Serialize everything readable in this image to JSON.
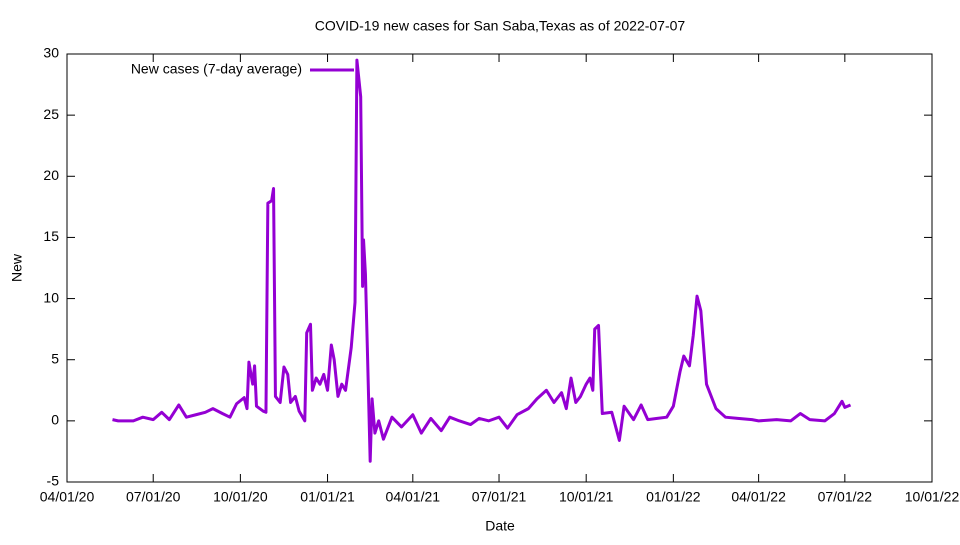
{
  "chart_data": {
    "type": "line",
    "title": "COVID-19 new cases for San Saba,Texas as of 2022-07-07",
    "x_label": "Date",
    "y_label": "New",
    "legend_position": "top-left",
    "xlim": [
      "2020-04-01",
      "2022-10-01"
    ],
    "xticks": [
      {
        "value": "2020-04-01",
        "label": "04/01/20"
      },
      {
        "value": "2020-07-01",
        "label": "07/01/20"
      },
      {
        "value": "2020-10-01",
        "label": "10/01/20"
      },
      {
        "value": "2021-01-01",
        "label": "01/01/21"
      },
      {
        "value": "2021-04-01",
        "label": "04/01/21"
      },
      {
        "value": "2021-07-01",
        "label": "07/01/21"
      },
      {
        "value": "2021-10-01",
        "label": "10/01/21"
      },
      {
        "value": "2022-01-01",
        "label": "01/01/22"
      },
      {
        "value": "2022-04-01",
        "label": "04/01/22"
      },
      {
        "value": "2022-07-01",
        "label": "07/01/22"
      },
      {
        "value": "2022-10-01",
        "label": "10/01/22"
      }
    ],
    "ylim": [
      -5,
      30
    ],
    "yticks": [
      -5,
      0,
      5,
      10,
      15,
      20,
      25,
      30
    ],
    "x": [
      "2020-05-19",
      "2020-05-25",
      "2020-06-10",
      "2020-06-20",
      "2020-07-01",
      "2020-07-10",
      "2020-07-18",
      "2020-07-28",
      "2020-08-05",
      "2020-08-15",
      "2020-08-25",
      "2020-09-02",
      "2020-09-12",
      "2020-09-20",
      "2020-09-27",
      "2020-10-05",
      "2020-10-08",
      "2020-10-10",
      "2020-10-14",
      "2020-10-16",
      "2020-10-18",
      "2020-10-25",
      "2020-10-28",
      "2020-10-30",
      "2020-11-03",
      "2020-11-05",
      "2020-11-07",
      "2020-11-12",
      "2020-11-16",
      "2020-11-20",
      "2020-11-23",
      "2020-11-28",
      "2020-12-02",
      "2020-12-08",
      "2020-12-10",
      "2020-12-14",
      "2020-12-16",
      "2020-12-20",
      "2020-12-24",
      "2020-12-28",
      "2021-01-01",
      "2021-01-05",
      "2021-01-08",
      "2021-01-12",
      "2021-01-16",
      "2021-01-20",
      "2021-01-26",
      "2021-01-30",
      "2021-02-01",
      "2021-02-03",
      "2021-02-05",
      "2021-02-07",
      "2021-02-08",
      "2021-02-10",
      "2021-02-12",
      "2021-02-15",
      "2021-02-17",
      "2021-02-20",
      "2021-02-24",
      "2021-03-01",
      "2021-03-10",
      "2021-03-20",
      "2021-04-01",
      "2021-04-10",
      "2021-04-20",
      "2021-05-01",
      "2021-05-10",
      "2021-05-20",
      "2021-06-01",
      "2021-06-10",
      "2021-06-20",
      "2021-07-01",
      "2021-07-10",
      "2021-07-20",
      "2021-08-01",
      "2021-08-10",
      "2021-08-20",
      "2021-08-28",
      "2021-09-05",
      "2021-09-10",
      "2021-09-15",
      "2021-09-20",
      "2021-09-25",
      "2021-10-01",
      "2021-10-05",
      "2021-10-08",
      "2021-10-10",
      "2021-10-14",
      "2021-10-18",
      "2021-10-28",
      "2021-11-05",
      "2021-11-10",
      "2021-11-20",
      "2021-11-28",
      "2021-12-05",
      "2021-12-15",
      "2021-12-25",
      "2022-01-01",
      "2022-01-08",
      "2022-01-12",
      "2022-01-18",
      "2022-01-22",
      "2022-01-26",
      "2022-01-30",
      "2022-02-05",
      "2022-02-15",
      "2022-02-25",
      "2022-03-10",
      "2022-03-25",
      "2022-04-01",
      "2022-04-20",
      "2022-05-05",
      "2022-05-15",
      "2022-05-25",
      "2022-06-10",
      "2022-06-20",
      "2022-06-28",
      "2022-07-01",
      "2022-07-07"
    ],
    "series": [
      {
        "name": "New cases (7-day average)",
        "color": "#9400d3",
        "values": [
          0.1,
          0.0,
          0.0,
          0.3,
          0.1,
          0.7,
          0.1,
          1.3,
          0.3,
          0.5,
          0.7,
          1.0,
          0.6,
          0.3,
          1.4,
          1.9,
          1.0,
          4.8,
          3.0,
          4.5,
          1.2,
          0.8,
          0.7,
          17.8,
          18.0,
          19.0,
          2.0,
          1.5,
          4.4,
          3.8,
          1.5,
          2.0,
          0.8,
          0.0,
          7.2,
          7.9,
          2.5,
          3.5,
          3.0,
          3.8,
          2.5,
          6.2,
          5.0,
          2.0,
          3.0,
          2.5,
          6.0,
          9.7,
          29.5,
          28.0,
          26.5,
          11.0,
          14.8,
          12.0,
          6.0,
          -3.3,
          1.8,
          -1.0,
          0.0,
          -1.5,
          0.3,
          -0.5,
          0.5,
          -1.0,
          0.2,
          -0.8,
          0.3,
          0.0,
          -0.3,
          0.2,
          0.0,
          0.3,
          -0.6,
          0.5,
          1.0,
          1.8,
          2.5,
          1.5,
          2.3,
          1.0,
          3.5,
          1.5,
          2.0,
          3.0,
          3.5,
          2.5,
          7.5,
          7.8,
          0.6,
          0.7,
          -1.6,
          1.2,
          0.1,
          1.3,
          0.1,
          0.2,
          0.3,
          1.2,
          4.0,
          5.3,
          4.5,
          7.0,
          10.2,
          9.0,
          3.0,
          1.0,
          0.3,
          0.2,
          0.1,
          0.0,
          0.1,
          0.0,
          0.6,
          0.1,
          0.0,
          0.6,
          1.6,
          1.1,
          1.3
        ]
      }
    ]
  }
}
